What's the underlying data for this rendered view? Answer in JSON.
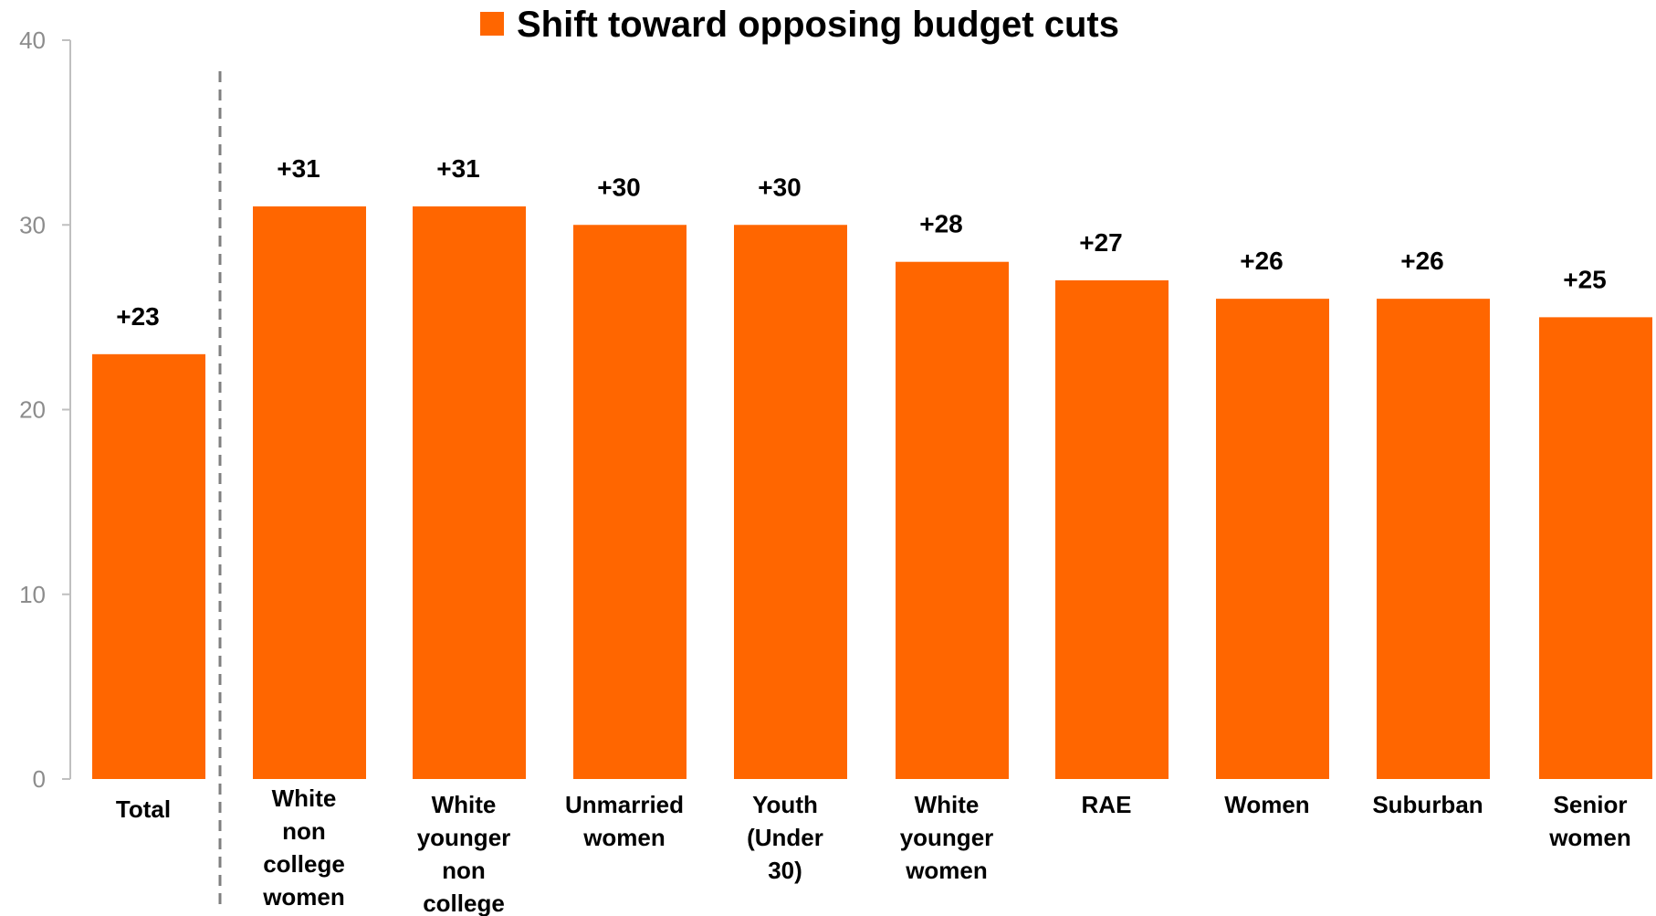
{
  "chart_data": {
    "type": "bar",
    "categories": [
      "Total",
      "White non college women",
      "White younger non college",
      "Unmarried women",
      "Youth (Under 30)",
      "White younger women",
      "RAE",
      "Women",
      "Suburban",
      "Senior women"
    ],
    "category_lines": [
      [
        "Total"
      ],
      [
        "White",
        "non",
        "college",
        "women"
      ],
      [
        "White",
        "younger",
        "non",
        "college"
      ],
      [
        "Unmarried",
        "women"
      ],
      [
        "Youth",
        "(Under",
        "30)"
      ],
      [
        "White",
        "younger",
        "women"
      ],
      [
        "RAE"
      ],
      [
        "Women"
      ],
      [
        "Suburban"
      ],
      [
        "Senior",
        "women"
      ]
    ],
    "series": [
      {
        "name": "Shift toward opposing budget cuts",
        "values": [
          23,
          31,
          31,
          30,
          30,
          28,
          27,
          26,
          26,
          25
        ],
        "labels": [
          "+23",
          "+31",
          "+31",
          "+30",
          "+30",
          "+28",
          "+27",
          "+26",
          "+26",
          "+25"
        ],
        "color": "#ff6600"
      }
    ],
    "ylim": [
      0,
      40
    ],
    "yticks": [
      "0",
      "10",
      "20",
      "30",
      "40"
    ],
    "ytick_values": [
      0,
      10,
      20,
      30,
      40
    ],
    "grid": false,
    "legend_position": "top-center",
    "separator_after_category": "Total",
    "axis_color": "#bfbfbf",
    "separator_color": "#7f7f7f"
  }
}
